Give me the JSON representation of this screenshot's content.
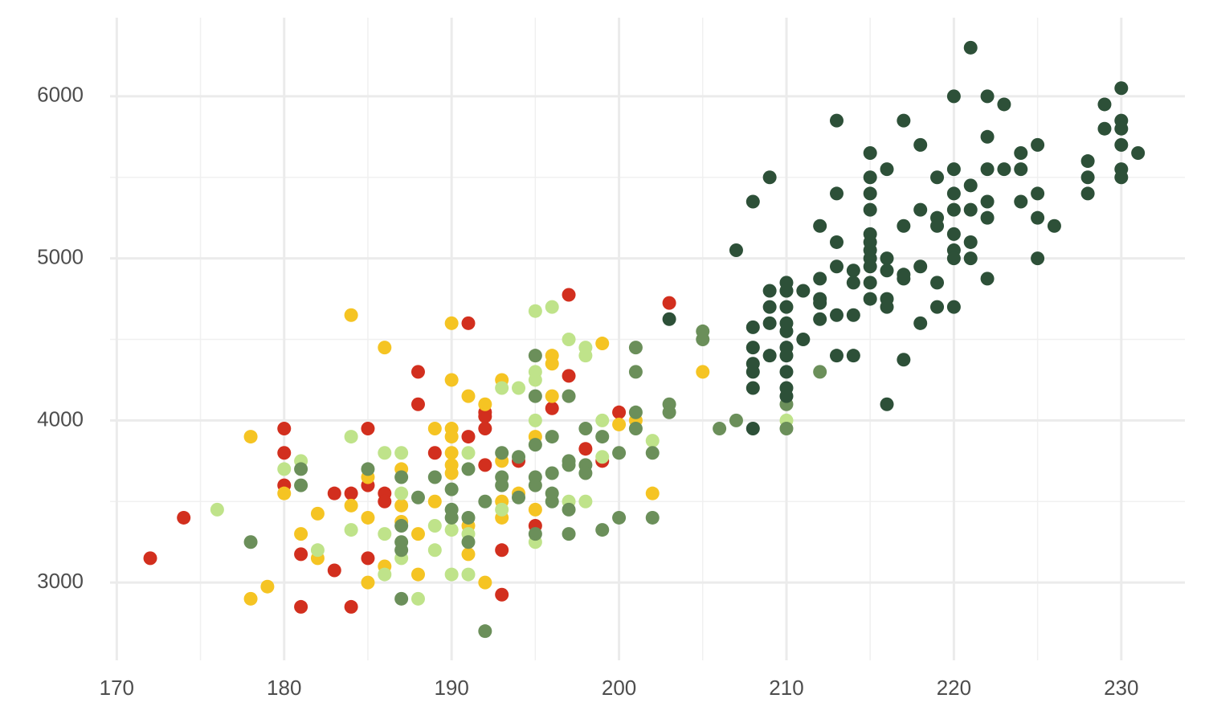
{
  "chart_data": {
    "type": "scatter",
    "grid": true,
    "xlim": [
      169.6,
      233.8
    ],
    "ylim": [
      2520,
      6485
    ],
    "xticks": [
      170,
      180,
      190,
      200,
      210,
      220,
      230
    ],
    "yticks": [
      3000,
      4000,
      5000,
      6000
    ],
    "series": [
      {
        "color": "#d22f1e",
        "x": [
          172,
          174,
          180,
          180,
          180,
          181,
          181,
          183,
          183,
          184,
          184,
          185,
          185,
          185,
          186,
          186,
          188,
          188,
          189,
          191,
          191,
          192,
          192,
          192,
          193,
          193,
          194,
          195,
          196,
          197,
          197,
          198,
          199,
          200,
          203,
          192
        ],
        "values": [
          3150,
          3400,
          3950,
          3800,
          3600,
          3175,
          2850,
          3550,
          3075,
          3550,
          2850,
          3950,
          3600,
          3150,
          3550,
          3500,
          4300,
          4100,
          3800,
          4600,
          3900,
          4050,
          3950,
          3725,
          3200,
          2925,
          3750,
          3350,
          4075,
          4275,
          4775,
          3825,
          3750,
          4050,
          4725,
          4025
        ]
      },
      {
        "color": "#f5c423",
        "x": [
          178,
          178,
          179,
          180,
          181,
          182,
          182,
          184,
          184,
          185,
          185,
          185,
          186,
          186,
          187,
          187,
          187,
          188,
          188,
          189,
          189,
          190,
          190,
          190,
          190,
          190,
          190,
          190,
          191,
          191,
          191,
          192,
          192,
          193,
          193,
          193,
          193,
          194,
          195,
          195,
          196,
          196,
          196,
          199,
          200,
          201,
          202,
          205
        ],
        "values": [
          3900,
          2900,
          2975,
          3550,
          3300,
          3425,
          3150,
          4650,
          3475,
          3400,
          3000,
          3650,
          4450,
          3100,
          3700,
          3475,
          3375,
          3300,
          3050,
          3950,
          3500,
          4600,
          4250,
          3950,
          3900,
          3800,
          3725,
          3675,
          4150,
          3350,
          3175,
          4100,
          3000,
          4250,
          3750,
          3500,
          3400,
          3550,
          3900,
          3450,
          4400,
          4350,
          4150,
          4475,
          3975,
          4000,
          3550,
          4300
        ]
      },
      {
        "color": "#bfe38a",
        "x": [
          176,
          180,
          181,
          182,
          184,
          184,
          186,
          186,
          186,
          187,
          187,
          187,
          188,
          189,
          189,
          190,
          190,
          191,
          191,
          191,
          193,
          194,
          195,
          195,
          195,
          195,
          195,
          196,
          197,
          197,
          198,
          198,
          198,
          199,
          199,
          202,
          210,
          193
        ],
        "values": [
          3450,
          3700,
          3750,
          3200,
          3900,
          3325,
          3800,
          3300,
          3050,
          3800,
          3550,
          3150,
          2900,
          3350,
          3200,
          3325,
          3050,
          3800,
          3300,
          3050,
          4200,
          4200,
          4675,
          4300,
          4250,
          4000,
          3250,
          4700,
          4500,
          3500,
          4450,
          4400,
          3500,
          4000,
          3775,
          3875,
          4000,
          3450
        ]
      },
      {
        "color": "#6b8f5a",
        "x": [
          178,
          181,
          181,
          185,
          187,
          187,
          187,
          187,
          187,
          188,
          189,
          190,
          190,
          190,
          191,
          191,
          191,
          192,
          192,
          193,
          193,
          193,
          194,
          194,
          195,
          195,
          195,
          195,
          195,
          195,
          196,
          196,
          196,
          196,
          197,
          197,
          197,
          197,
          197,
          198,
          198,
          198,
          199,
          199,
          200,
          200,
          201,
          201,
          201,
          201,
          202,
          202,
          203,
          203,
          205,
          205,
          206,
          207,
          210,
          210,
          210,
          212
        ],
        "values": [
          3250,
          3700,
          3600,
          3700,
          3650,
          3350,
          3250,
          3200,
          2900,
          3525,
          3650,
          3575,
          3450,
          3400,
          3700,
          3400,
          3250,
          3500,
          2700,
          3800,
          3600,
          3650,
          3775,
          3525,
          4400,
          4150,
          3850,
          3650,
          3600,
          3300,
          3900,
          3675,
          3550,
          3500,
          4150,
          3750,
          3725,
          3450,
          3300,
          3950,
          3725,
          3675,
          3900,
          3325,
          3800,
          3400,
          4450,
          4300,
          4050,
          3950,
          3800,
          3400,
          4100,
          4050,
          4550,
          4500,
          3950,
          4000,
          4800,
          4100,
          3950,
          4300
        ]
      },
      {
        "color": "#2d5038",
        "x": [
          203,
          207,
          208,
          208,
          208,
          208,
          208,
          208,
          208,
          209,
          209,
          209,
          209,
          209,
          210,
          210,
          210,
          210,
          210,
          210,
          210,
          210,
          210,
          210,
          211,
          211,
          212,
          212,
          212,
          212,
          212,
          213,
          213,
          213,
          213,
          213,
          213,
          214,
          214,
          214,
          214,
          215,
          215,
          215,
          215,
          215,
          215,
          215,
          215,
          215,
          215,
          215,
          216,
          216,
          216,
          216,
          216,
          216,
          217,
          217,
          217,
          217,
          217,
          218,
          218,
          218,
          218,
          219,
          219,
          219,
          219,
          219,
          220,
          220,
          220,
          220,
          220,
          220,
          220,
          220,
          221,
          221,
          221,
          221,
          221,
          222,
          222,
          222,
          222,
          222,
          222,
          223,
          223,
          224,
          224,
          224,
          225,
          225,
          225,
          225,
          226,
          228,
          228,
          228,
          229,
          229,
          230,
          230,
          230,
          230,
          230,
          230,
          231
        ],
        "values": [
          4625,
          5050,
          5350,
          4575,
          4450,
          4350,
          4300,
          4200,
          3950,
          5500,
          4800,
          4700,
          4600,
          4400,
          4850,
          4800,
          4700,
          4600,
          4550,
          4450,
          4400,
          4300,
          4200,
          4150,
          4800,
          4500,
          5200,
          4875,
          4750,
          4725,
          4625,
          5850,
          5400,
          5100,
          4950,
          4650,
          4400,
          4925,
          4850,
          4650,
          4400,
          5650,
          5500,
          5400,
          5300,
          5150,
          5100,
          5050,
          5000,
          4950,
          4850,
          4750,
          5550,
          5000,
          4925,
          4750,
          4700,
          4100,
          5850,
          5200,
          4900,
          4875,
          4375,
          5700,
          5300,
          4950,
          4600,
          5500,
          5250,
          5200,
          4850,
          4700,
          6000,
          5550,
          5400,
          5300,
          5150,
          5050,
          5000,
          4700,
          5450,
          5300,
          5100,
          5000,
          6300,
          6000,
          5750,
          5550,
          5350,
          5250,
          4875,
          5950,
          5550,
          5650,
          5550,
          5350,
          5700,
          5400,
          5250,
          5000,
          5200,
          5600,
          5500,
          5400,
          5950,
          5800,
          6050,
          5850,
          5800,
          5700,
          5550,
          5500,
          5650
        ]
      }
    ]
  }
}
